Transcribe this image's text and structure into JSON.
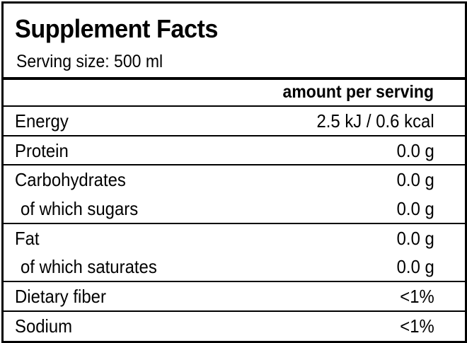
{
  "title": "Supplement Facts",
  "serving_size": "Serving size: 500 ml",
  "column_header": "amount per serving",
  "rows": [
    {
      "label": "Energy",
      "value": "2.5 kJ / 0.6 kcal"
    },
    {
      "label": "Protein",
      "value": "0.0 g"
    },
    {
      "label": "Carbohydrates",
      "value": "0.0 g"
    },
    {
      "label": " of which sugars",
      "value": "0.0 g"
    },
    {
      "label": "Fat",
      "value": "0.0 g"
    },
    {
      "label": " of which saturates",
      "value": "0.0 g"
    },
    {
      "label": "Dietary fiber",
      "value": "<1%"
    },
    {
      "label": "Sodium",
      "value": "<1%"
    }
  ]
}
